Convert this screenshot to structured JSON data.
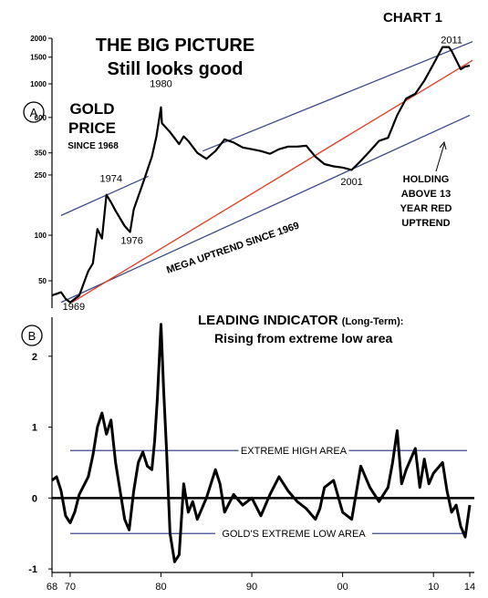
{
  "chart_data": [
    {
      "type": "line",
      "figure_label": "CHART 1",
      "panel_marker": "A",
      "title": "THE BIG PICTURE",
      "subtitle": "Still looks good",
      "series_label": [
        "GOLD",
        "PRICE"
      ],
      "series_since": "SINCE 1968",
      "y_scale": "log",
      "ylim": [
        33,
        2000
      ],
      "xlim": [
        1968,
        2014.5
      ],
      "y_ticks": [
        {
          "value": 2000,
          "label": "2000"
        },
        {
          "value": 1500,
          "label": "1500"
        },
        {
          "value": 1000,
          "label": "1000"
        },
        {
          "value": 600,
          "label": "600"
        },
        {
          "value": 350,
          "label": "350"
        },
        {
          "value": 250,
          "label": "250"
        },
        {
          "value": 100,
          "label": "100"
        },
        {
          "value": 50,
          "label": "50"
        }
      ],
      "x": [
        1968,
        1969,
        1969.5,
        1970,
        1971,
        1972,
        1972.5,
        1973,
        1973.5,
        1974,
        1974.5,
        1975,
        1976,
        1976.6,
        1977,
        1978,
        1979,
        1979.5,
        1980,
        1980.1,
        1981,
        1982,
        1982.5,
        1983,
        1984,
        1985,
        1986,
        1987,
        1988,
        1989,
        1990,
        1991,
        1992,
        1993,
        1994,
        1995,
        1996,
        1997,
        1998,
        1999,
        2000,
        2001,
        2002,
        2003,
        2004,
        2005,
        2006,
        2007,
        2008,
        2009,
        2010,
        2011,
        2011.7,
        2012,
        2013,
        2013.5,
        2014
      ],
      "values": [
        40,
        42,
        38,
        36,
        40,
        58,
        65,
        110,
        95,
        185,
        165,
        145,
        115,
        105,
        148,
        220,
        330,
        450,
        700,
        550,
        480,
        400,
        450,
        420,
        350,
        320,
        360,
        430,
        410,
        380,
        370,
        360,
        345,
        370,
        385,
        385,
        390,
        330,
        295,
        285,
        280,
        270,
        310,
        360,
        420,
        440,
        620,
        800,
        860,
        1050,
        1350,
        1750,
        1750,
        1650,
        1250,
        1300,
        1320
      ],
      "annotations": [
        {
          "text": "1980",
          "x": 1980,
          "y": 950
        },
        {
          "text": "1974",
          "x": 1974.5,
          "y": 225
        },
        {
          "text": "1976",
          "x": 1976.8,
          "y": 88
        },
        {
          "text": "1969",
          "x": 1970.4,
          "y": 32
        },
        {
          "text": "2001",
          "x": 2001,
          "y": 215
        },
        {
          "text": "2011",
          "x": 2012,
          "y": 1850
        }
      ],
      "trendlines": [
        {
          "text": "MEGA UPTREND SINCE 1969",
          "color": "#3d4a8a",
          "from": {
            "x": 1969,
            "y": 36
          },
          "to": {
            "x": 2014,
            "y": 620
          }
        },
        {
          "color": "#3d4a8a",
          "from": {
            "x": 1969,
            "y": 135
          },
          "to": {
            "x": 1978.6,
            "y": 245
          }
        },
        {
          "color": "#3d4a8a",
          "from": {
            "x": 1984.6,
            "y": 360
          },
          "to": {
            "x": 2014.3,
            "y": 1900
          }
        },
        {
          "text": "red uptrend",
          "color": "#e03a1e",
          "from": {
            "x": 1970.2,
            "y": 36
          },
          "to": {
            "x": 2014.3,
            "y": 1430
          }
        }
      ],
      "notes": [
        "HOLDING",
        "ABOVE 13",
        "YEAR RED",
        "UPTREND"
      ]
    },
    {
      "type": "line",
      "panel_marker": "B",
      "title": "LEADING INDICATOR",
      "title_suffix": "(Long-Term):",
      "subtitle": "Rising from extreme low area",
      "ylim": [
        -1.05,
        2.55
      ],
      "y_ticks": [
        {
          "value": 2,
          "label": "2"
        },
        {
          "value": 1,
          "label": "1"
        },
        {
          "value": 0,
          "label": "0"
        },
        {
          "value": -1,
          "label": "-1"
        }
      ],
      "zero_line": true,
      "bands": [
        {
          "text": "EXTREME HIGH AREA",
          "y": 0.67,
          "color": "#3d4a8a"
        },
        {
          "text": "GOLD'S EXTREME   LOW AREA",
          "y": -0.5,
          "color": "#3d4a8a"
        }
      ],
      "x": [
        1968,
        1968.5,
        1969,
        1969.5,
        1970,
        1970.5,
        1971,
        1972,
        1972.5,
        1973,
        1973.5,
        1974,
        1974.5,
        1975,
        1975.5,
        1976,
        1976.5,
        1977,
        1977.5,
        1978,
        1978.5,
        1979,
        1979.3,
        1979.6,
        1980,
        1980.3,
        1980.6,
        1981,
        1981.5,
        1982,
        1982.5,
        1983,
        1983.5,
        1984,
        1985,
        1986,
        1986.5,
        1987,
        1988,
        1989,
        1990,
        1991,
        1992,
        1993,
        1994,
        1995,
        1996,
        1997,
        1997.5,
        1998,
        1999,
        2000,
        2001,
        2002,
        2003,
        2004,
        2005,
        2005.5,
        2006,
        2006.5,
        2007,
        2008,
        2008.5,
        2009,
        2009.5,
        2010,
        2011,
        2011.5,
        2012,
        2012.5,
        2013,
        2013.5,
        2014
      ],
      "values": [
        0.25,
        0.3,
        0.1,
        -0.25,
        -0.35,
        -0.2,
        0.05,
        0.3,
        0.6,
        1.0,
        1.2,
        0.9,
        1.1,
        0.5,
        0.1,
        -0.3,
        -0.45,
        0.1,
        0.5,
        0.65,
        0.45,
        0.4,
        0.8,
        1.4,
        2.45,
        1.5,
        0.7,
        -0.5,
        -0.9,
        -0.8,
        0.2,
        -0.2,
        -0.05,
        -0.3,
        0.0,
        0.4,
        0.2,
        -0.2,
        0.05,
        -0.1,
        0.0,
        -0.25,
        0.05,
        0.3,
        0.1,
        -0.05,
        -0.15,
        -0.3,
        -0.15,
        0.15,
        0.25,
        -0.2,
        -0.3,
        0.45,
        0.15,
        -0.05,
        0.15,
        0.5,
        0.95,
        0.2,
        0.4,
        0.7,
        0.15,
        0.55,
        0.2,
        0.35,
        0.5,
        0.1,
        -0.2,
        -0.1,
        -0.4,
        -0.55,
        -0.1
      ],
      "x_ticks": [
        {
          "value": 1968,
          "label": "68"
        },
        {
          "value": 1970,
          "label": "70"
        },
        {
          "value": 1980,
          "label": "80"
        },
        {
          "value": 1990,
          "label": "90"
        },
        {
          "value": 2000,
          "label": "00"
        },
        {
          "value": 2010,
          "label": "10"
        },
        {
          "value": 2014,
          "label": "14"
        }
      ]
    }
  ],
  "colors": {
    "price_line": "#000000",
    "trend_blue": "#3d4a8a",
    "trend_red": "#e03a1e",
    "axis": "#000000",
    "band": "#3d4a8a"
  }
}
